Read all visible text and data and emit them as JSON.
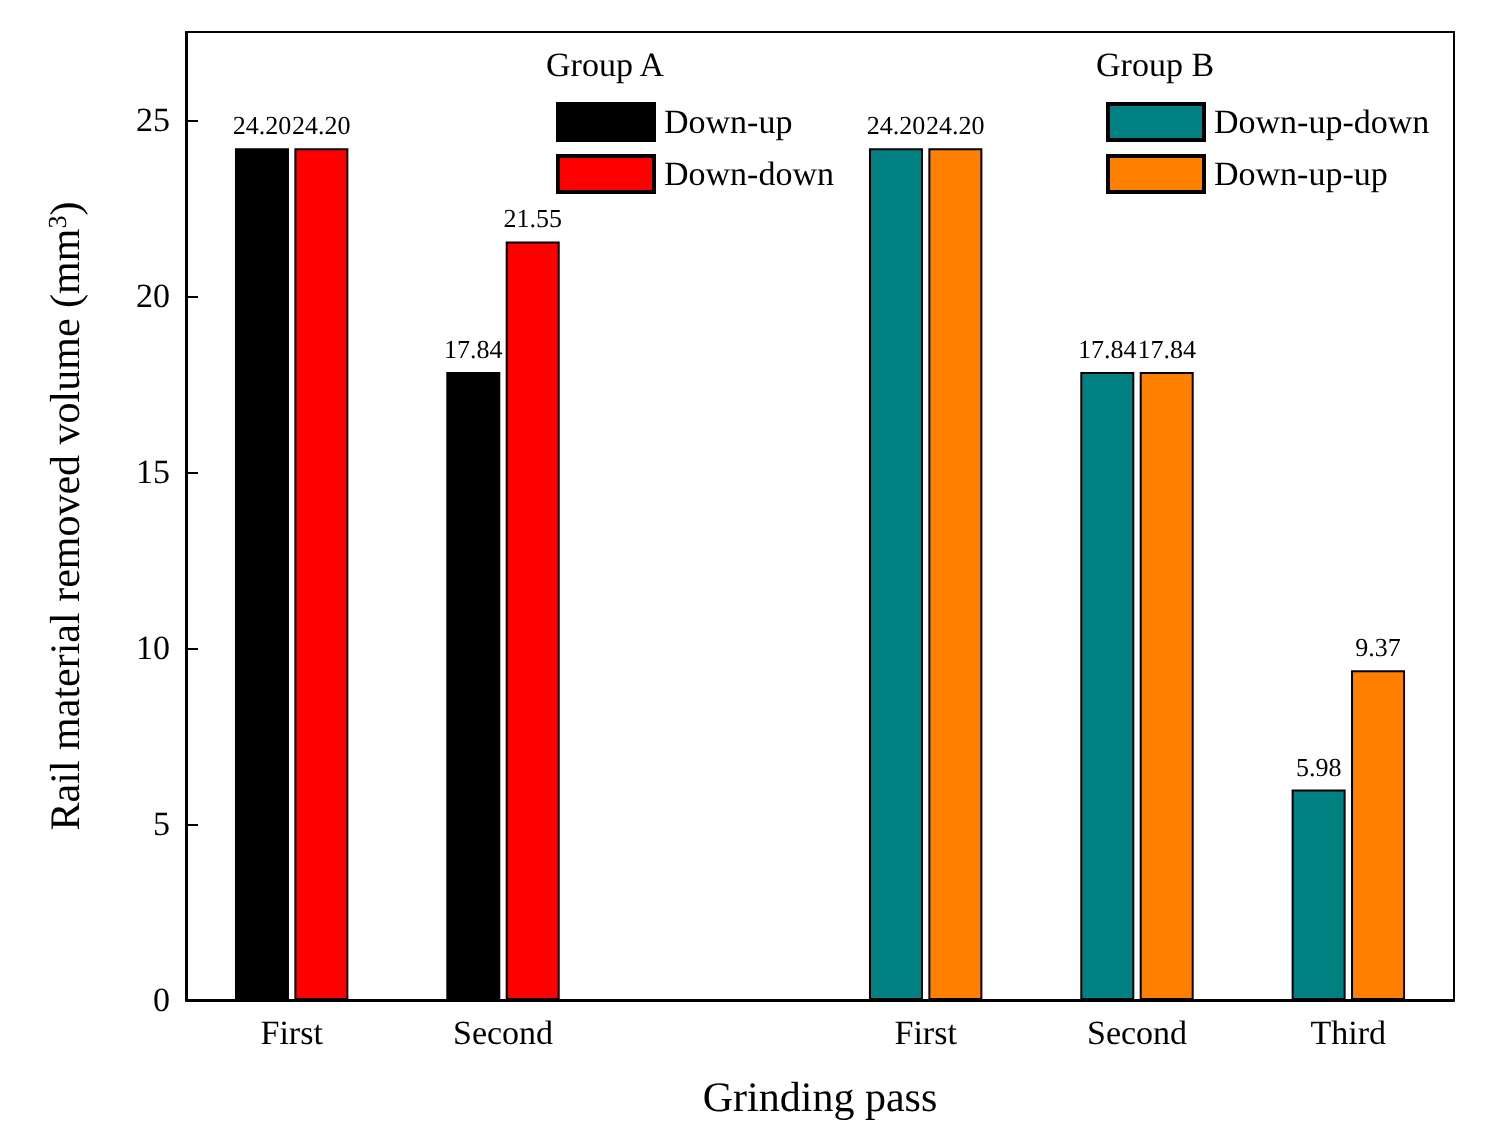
{
  "chart_data": {
    "type": "bar",
    "xlabel": "Grinding pass",
    "ylabel": "Rail material removed volume (mm$^{3}$)",
    "categories": [
      "First",
      "Second",
      null,
      "First",
      "Second",
      "Third"
    ],
    "series": [
      {
        "name": "Down-up",
        "color": "#000000",
        "values": [
          24.2,
          17.84,
          null,
          null,
          null,
          null
        ],
        "value_labels": [
          "24.20",
          "17.84",
          null,
          null,
          null,
          null
        ]
      },
      {
        "name": "Down-down",
        "color": "#ff0000",
        "values": [
          24.2,
          21.55,
          null,
          null,
          null,
          null
        ],
        "value_labels": [
          "24.20",
          "21.55",
          null,
          null,
          null,
          null
        ]
      },
      {
        "name": "Down-up-down",
        "color": "#008080",
        "values": [
          null,
          null,
          null,
          24.2,
          17.84,
          5.98
        ],
        "value_labels": [
          null,
          null,
          null,
          "24.20",
          "17.84",
          "5.98"
        ]
      },
      {
        "name": "Down-up-up",
        "color": "#ff8000",
        "values": [
          null,
          null,
          null,
          24.2,
          17.84,
          9.37
        ],
        "value_labels": [
          null,
          null,
          null,
          "24.20",
          "17.84",
          "9.37"
        ]
      }
    ],
    "annotations": [
      "Group A",
      "Group B"
    ],
    "ylim": [
      0,
      27.5
    ],
    "yticks": [
      0,
      5,
      10,
      15,
      20,
      25
    ],
    "grid": false,
    "legend": "top"
  }
}
